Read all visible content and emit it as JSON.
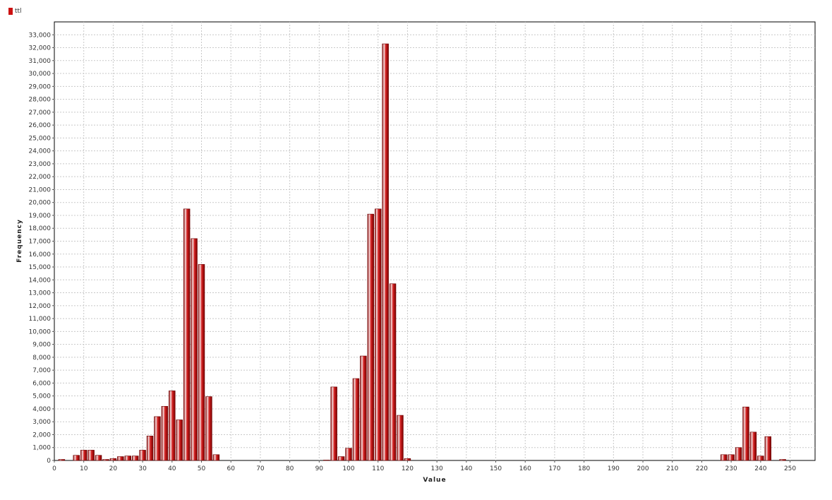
{
  "chart_data": {
    "type": "bar",
    "xlabel": "Value",
    "ylabel": "Frequency",
    "xlim": [
      0,
      258.5
    ],
    "ylim": [
      0,
      34000
    ],
    "grid": true,
    "legend_position": "top-left",
    "bar_color": "#cc1111",
    "x_ticks": [
      0,
      10,
      20,
      30,
      40,
      50,
      60,
      70,
      80,
      90,
      100,
      110,
      120,
      130,
      140,
      150,
      160,
      170,
      180,
      190,
      200,
      210,
      220,
      230,
      240,
      250
    ],
    "y_ticks": [
      0,
      1000,
      2000,
      3000,
      4000,
      5000,
      6000,
      7000,
      8000,
      9000,
      10000,
      11000,
      12000,
      13000,
      14000,
      15000,
      16000,
      17000,
      18000,
      19000,
      20000,
      21000,
      22000,
      23000,
      24000,
      25000,
      26000,
      27000,
      28000,
      29000,
      30000,
      31000,
      32000,
      33000
    ],
    "y_tick_labels": [
      "0",
      "1,000",
      "2,000",
      "3,000",
      "4,000",
      "5,000",
      "6,000",
      "7,000",
      "8,000",
      "9,000",
      "10,000",
      "11,000",
      "12,000",
      "13,000",
      "14,000",
      "15,000",
      "16,000",
      "17,000",
      "18,000",
      "19,000",
      "20,000",
      "21,000",
      "22,000",
      "23,000",
      "24,000",
      "25,000",
      "26,000",
      "27,000",
      "28,000",
      "29,000",
      "30,000",
      "31,000",
      "32,000",
      "33,000"
    ],
    "bin_width": 2.5,
    "series": [
      {
        "name": "ttl",
        "bins": [
          {
            "x": 2.5,
            "y": 80
          },
          {
            "x": 7.5,
            "y": 400
          },
          {
            "x": 10.0,
            "y": 800
          },
          {
            "x": 12.5,
            "y": 800
          },
          {
            "x": 15.0,
            "y": 400
          },
          {
            "x": 17.5,
            "y": 80
          },
          {
            "x": 20.0,
            "y": 150
          },
          {
            "x": 22.5,
            "y": 300
          },
          {
            "x": 25.0,
            "y": 350
          },
          {
            "x": 27.5,
            "y": 350
          },
          {
            "x": 30.0,
            "y": 800
          },
          {
            "x": 32.5,
            "y": 1900
          },
          {
            "x": 35.0,
            "y": 3400
          },
          {
            "x": 37.5,
            "y": 4200
          },
          {
            "x": 40.0,
            "y": 5400
          },
          {
            "x": 42.5,
            "y": 3150
          },
          {
            "x": 45.0,
            "y": 19500
          },
          {
            "x": 47.5,
            "y": 17200
          },
          {
            "x": 50.0,
            "y": 15200
          },
          {
            "x": 52.5,
            "y": 4950
          },
          {
            "x": 55.0,
            "y": 450
          },
          {
            "x": 92.5,
            "y": 30
          },
          {
            "x": 95.0,
            "y": 5700
          },
          {
            "x": 97.5,
            "y": 300
          },
          {
            "x": 100.0,
            "y": 950
          },
          {
            "x": 102.5,
            "y": 6350
          },
          {
            "x": 105.0,
            "y": 8100
          },
          {
            "x": 107.5,
            "y": 19100
          },
          {
            "x": 110.0,
            "y": 19500
          },
          {
            "x": 112.5,
            "y": 32300
          },
          {
            "x": 115.0,
            "y": 13700
          },
          {
            "x": 117.5,
            "y": 3500
          },
          {
            "x": 120.0,
            "y": 150
          },
          {
            "x": 227.5,
            "y": 450
          },
          {
            "x": 230.0,
            "y": 450
          },
          {
            "x": 232.5,
            "y": 1000
          },
          {
            "x": 235.0,
            "y": 4150
          },
          {
            "x": 237.5,
            "y": 2200
          },
          {
            "x": 240.0,
            "y": 350
          },
          {
            "x": 242.5,
            "y": 1850
          },
          {
            "x": 247.5,
            "y": 80
          }
        ]
      }
    ]
  }
}
